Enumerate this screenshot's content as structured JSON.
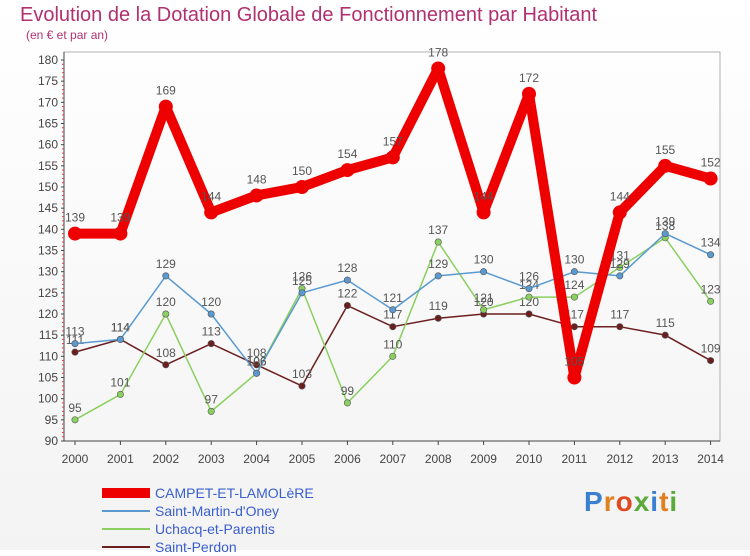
{
  "title": "Evolution de la Dotation Globale de Fonctionnement par Habitant",
  "subtitle": "(en € et par an)",
  "logo_text": "Proxiti",
  "chart_data": {
    "type": "line",
    "title": "Evolution de la Dotation Globale de Fonctionnement par Habitant",
    "ylabel": "(en € et par an)",
    "xlabel": "",
    "ylim": [
      90,
      180
    ],
    "yticks": [
      "90",
      "95",
      "100",
      "105",
      "110",
      "115",
      "120",
      "125",
      "130",
      "135",
      "140",
      "145",
      "150",
      "155",
      "160",
      "165",
      "170",
      "175",
      "180"
    ],
    "categories": [
      "2000",
      "2001",
      "2002",
      "2003",
      "2004",
      "2005",
      "2006",
      "2007",
      "2008",
      "2009",
      "2010",
      "2011",
      "2012",
      "2013",
      "2014"
    ],
    "grid": false,
    "legend_position": "bottom-left",
    "series": [
      {
        "name": "CAMPET-ET-LAMOLèRE",
        "color": "#ee0000",
        "values": [
          139,
          139,
          169,
          144,
          148,
          150,
          154,
          157,
          178,
          144,
          172,
          105,
          144,
          155,
          152
        ],
        "labels": [
          "139",
          "139",
          "169",
          "144",
          "148",
          "150",
          "154",
          "157",
          "178",
          "144",
          "172",
          "105",
          "144",
          "155",
          "152"
        ]
      },
      {
        "name": "Saint-Martin-d'Oney",
        "color": "#5a9ad0",
        "values": [
          113,
          114,
          129,
          120,
          106,
          125,
          128,
          121,
          129,
          130,
          126,
          130,
          129,
          139,
          134
        ],
        "labels": [
          "113",
          "114",
          "129",
          "120",
          "106",
          "125",
          "128",
          "121",
          "129",
          "130",
          "126",
          "130",
          "129",
          "139",
          "134"
        ]
      },
      {
        "name": "Uchacq-et-Parentis",
        "color": "#8ad060",
        "values": [
          95,
          101,
          120,
          97,
          106,
          126,
          99,
          110,
          137,
          121,
          124,
          124,
          131,
          138,
          123
        ],
        "labels": [
          "95",
          "101",
          "120",
          "97",
          "106",
          "126",
          "99",
          "110",
          "137",
          "121",
          "124",
          "124",
          "131",
          "138",
          "123"
        ]
      },
      {
        "name": "Saint-Perdon",
        "color": "#6b1f1f",
        "values": [
          111,
          114,
          108,
          113,
          108,
          103,
          122,
          117,
          119,
          120,
          120,
          117,
          117,
          115,
          109
        ],
        "labels": [
          "111",
          "114",
          "108",
          "113",
          "108",
          "103",
          "122",
          "117",
          "119",
          "120",
          "120",
          "117",
          "117",
          "115",
          "109"
        ]
      }
    ]
  }
}
